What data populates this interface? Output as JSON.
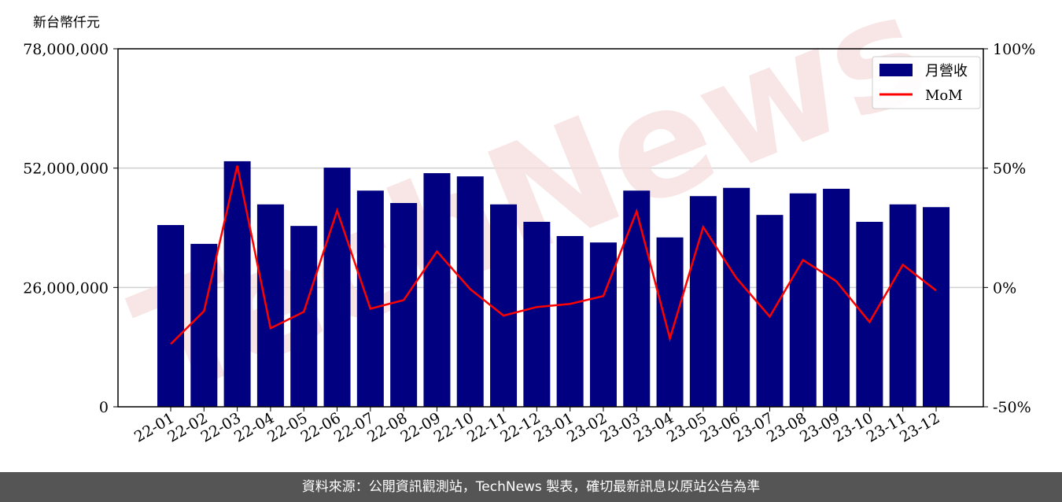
{
  "unit_label": "新台幣仟元",
  "footer": "資料來源：公開資訊觀測站，TechNews 製表，確切最新訊息以原站公告為準",
  "watermark": "TechNews",
  "chart_data": {
    "type": "bar+line",
    "title": "",
    "categories": [
      "22-01",
      "22-02",
      "22-03",
      "22-04",
      "22-05",
      "22-06",
      "22-07",
      "22-08",
      "22-09",
      "22-10",
      "22-11",
      "22-12",
      "23-01",
      "23-02",
      "23-03",
      "23-04",
      "23-05",
      "23-06",
      "23-07",
      "23-08",
      "23-09",
      "23-10",
      "23-11",
      "23-12"
    ],
    "series": [
      {
        "name": "月營收",
        "type": "bar",
        "axis": "left",
        "color": "#000080",
        "values": [
          39600000,
          35500000,
          53500000,
          44100000,
          39400000,
          52100000,
          47100000,
          44400000,
          50900000,
          50200000,
          44100000,
          40300000,
          37200000,
          35800000,
          47100000,
          36900000,
          45900000,
          47700000,
          41800000,
          46500000,
          47500000,
          40300000,
          44100000,
          43500000
        ]
      },
      {
        "name": "MoM",
        "type": "line",
        "axis": "right",
        "color": "#ff0000",
        "values": [
          -23.7,
          -9.9,
          51.0,
          -17.1,
          -10.2,
          32.2,
          -8.9,
          -5.3,
          15.1,
          -0.7,
          -11.8,
          -8.2,
          -6.9,
          -3.6,
          31.9,
          -21.4,
          25.3,
          3.9,
          -12.2,
          11.5,
          2.6,
          -14.5,
          9.5,
          -1.3
        ]
      }
    ],
    "left_axis": {
      "ylim": [
        0,
        78000000
      ],
      "ticks": [
        "0",
        "26,000,000",
        "52,000,000",
        "78,000,000"
      ],
      "tick_values": [
        0,
        26000000,
        52000000,
        78000000
      ]
    },
    "right_axis": {
      "ylim": [
        -50,
        100
      ],
      "ticks": [
        "-50%",
        "0%",
        "50%",
        "100%"
      ],
      "tick_values": [
        -50,
        0,
        50,
        100
      ]
    },
    "grid": "horizontal",
    "legend": "top-right"
  }
}
